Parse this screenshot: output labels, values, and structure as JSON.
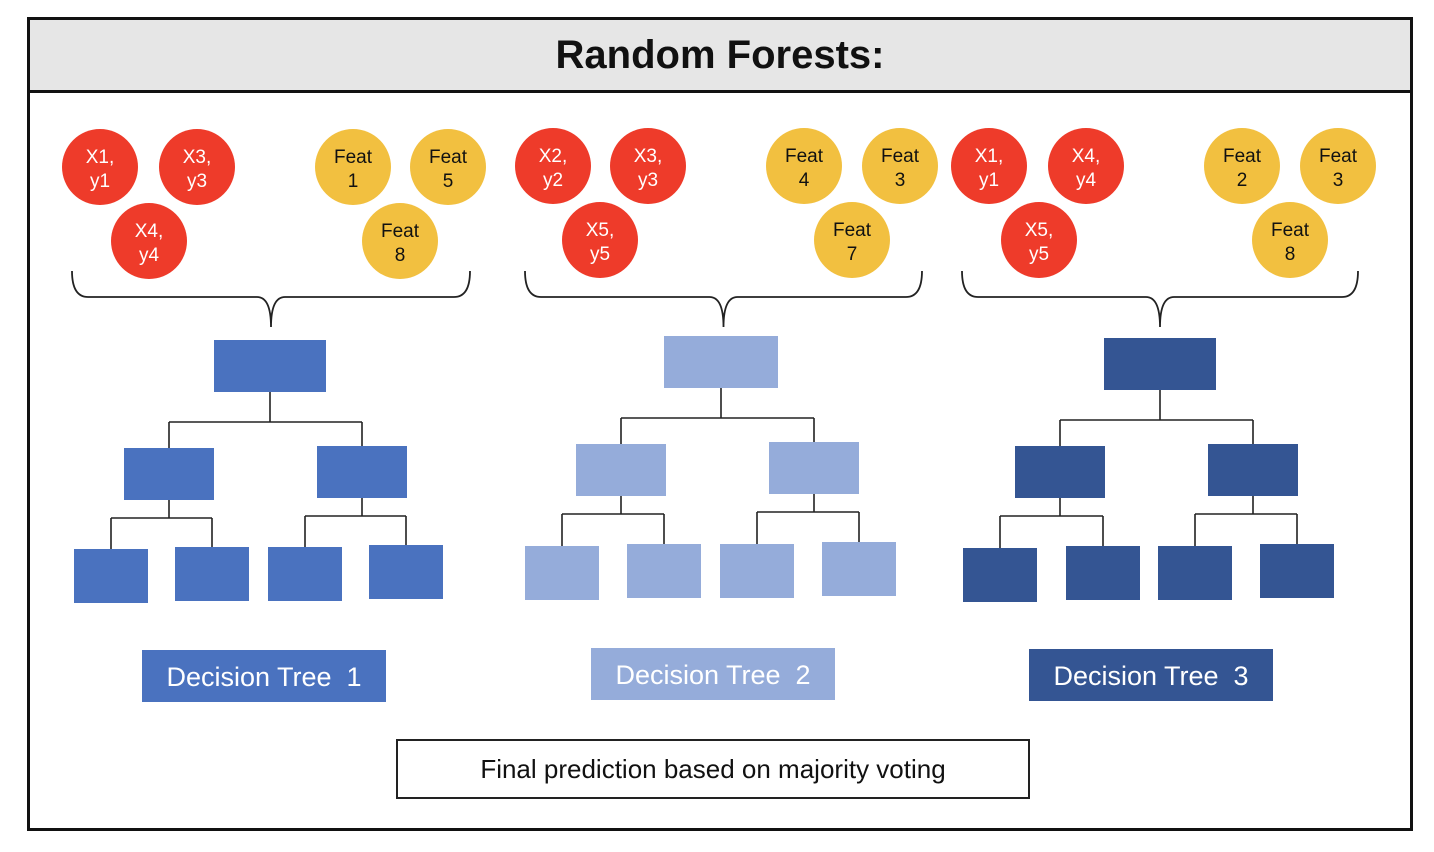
{
  "title": "Random Forests:",
  "colors": {
    "sample": "#ee3b2a",
    "feature": "#f2c040",
    "border": "#111111"
  },
  "trees": [
    {
      "samples": [
        [
          "X1,",
          "y1"
        ],
        [
          "X3,",
          "y3"
        ],
        [
          "X4,",
          "y4"
        ]
      ],
      "features": [
        [
          "Feat",
          "1"
        ],
        [
          "Feat",
          "5"
        ],
        [
          "Feat",
          "8"
        ]
      ],
      "color": "#4a72bf",
      "label": "Decision Tree  1"
    },
    {
      "samples": [
        [
          "X2,",
          "y2"
        ],
        [
          "X3,",
          "y3"
        ],
        [
          "X5,",
          "y5"
        ]
      ],
      "features": [
        [
          "Feat",
          "4"
        ],
        [
          "Feat",
          "3"
        ],
        [
          "Feat",
          "7"
        ]
      ],
      "color": "#95acda",
      "label": "Decision Tree  2"
    },
    {
      "samples": [
        [
          "X1,",
          "y1"
        ],
        [
          "X4,",
          "y4"
        ],
        [
          "X5,",
          "y5"
        ]
      ],
      "features": [
        [
          "Feat",
          "2"
        ],
        [
          "Feat",
          "3"
        ],
        [
          "Feat",
          "8"
        ]
      ],
      "color": "#345593",
      "label": "Decision Tree  3"
    }
  ],
  "final_prediction": "Final prediction based on majority  voting"
}
